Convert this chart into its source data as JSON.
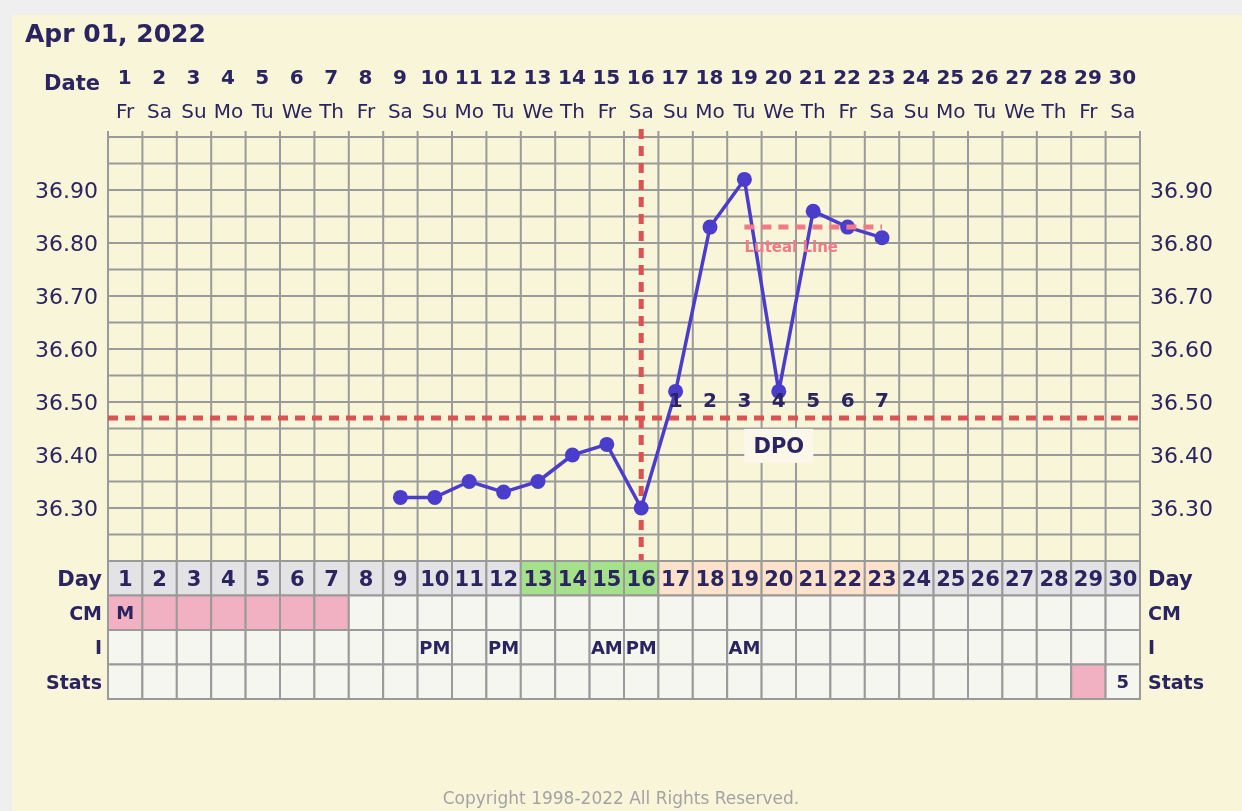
{
  "chart_data": [
    {
      "type": "line",
      "title": "Apr 01, 2022",
      "xlabel": "Date",
      "categories": [
        "1 Fr",
        "2 Sa",
        "3 Su",
        "4 Mo",
        "5 Tu",
        "6 We",
        "7 Th",
        "8 Fr",
        "9 Sa",
        "10 Su",
        "11 Mo",
        "12 Tu",
        "13 We",
        "14 Th",
        "15 Fr",
        "16 Sa",
        "17 Su",
        "18 Mo",
        "19 Tu",
        "20 We",
        "21 Th",
        "22 Fr",
        "23 Sa",
        "24 Su",
        "25 Mo",
        "26 Tu",
        "27 We",
        "28 Th",
        "29 Fr",
        "30 Sa"
      ],
      "series": [
        {
          "color": "#4b3dcc",
          "marker": "circle",
          "values": [
            null,
            null,
            null,
            null,
            null,
            null,
            null,
            null,
            36.32,
            36.32,
            36.35,
            36.33,
            36.35,
            36.4,
            36.42,
            36.3,
            36.52,
            36.83,
            36.92,
            36.52,
            36.86,
            36.83,
            36.81,
            null,
            null,
            null,
            null,
            null,
            null,
            null
          ]
        },
        {
          "name": "Luteal Line",
          "color": "#f27a86",
          "marker": "none",
          "line_style": "dashed",
          "values": [
            null,
            null,
            null,
            null,
            null,
            null,
            null,
            null,
            null,
            null,
            null,
            null,
            null,
            null,
            null,
            null,
            null,
            null,
            36.83,
            36.83,
            36.83,
            36.83,
            36.83,
            null,
            null,
            null,
            null,
            null,
            null,
            null
          ]
        }
      ],
      "ylim": [
        36.2,
        37.0
      ],
      "yticks": [
        {
          "value": 36.25,
          "label": null
        },
        {
          "value": 36.3,
          "label": "36.30"
        },
        {
          "value": 36.35,
          "label": null
        },
        {
          "value": 36.4,
          "label": "36.40"
        },
        {
          "value": 36.45,
          "label": null
        },
        {
          "value": 36.5,
          "label": "36.50"
        },
        {
          "value": 36.55,
          "label": null
        },
        {
          "value": 36.6,
          "label": "36.60"
        },
        {
          "value": 36.65,
          "label": null
        },
        {
          "value": 36.7,
          "label": "36.70"
        },
        {
          "value": 36.75,
          "label": null
        },
        {
          "value": 36.8,
          "label": "36.80"
        },
        {
          "value": 36.85,
          "label": null
        },
        {
          "value": 36.9,
          "label": "36.90"
        },
        {
          "value": 36.95,
          "label": null
        }
      ],
      "y2lim": [
        36.2,
        37.0
      ],
      "y2ticks": [
        {
          "value": 36.3,
          "label": "36.30"
        },
        {
          "value": 36.4,
          "label": "36.40"
        },
        {
          "value": 36.5,
          "label": "36.50"
        },
        {
          "value": 36.6,
          "label": "36.60"
        },
        {
          "value": 36.7,
          "label": "36.70"
        },
        {
          "value": 36.8,
          "label": "36.80"
        },
        {
          "value": 36.9,
          "label": "36.90"
        }
      ],
      "grid": true,
      "ref_lines": [
        {
          "axis": "x",
          "value": "16 Sa",
          "color": "#dc5252",
          "line_style": "dashed"
        },
        {
          "axis": "y",
          "value": 36.47,
          "color": "#dc5252",
          "line_style": "dashed"
        }
      ],
      "annotations": [
        "1",
        "2",
        "3",
        "4",
        "5",
        "6",
        "7",
        "DPO",
        "Copyright 1998-2022 All Rights Reserved."
      ]
    },
    {
      "type": "heatmap",
      "categories": [
        null,
        null,
        null,
        null,
        null,
        null,
        null,
        null,
        null,
        null,
        null,
        null,
        null,
        null,
        null,
        null,
        null,
        null,
        null,
        null,
        null,
        null,
        null,
        null,
        null,
        null,
        null,
        null,
        null,
        null
      ],
      "y_categories": [
        "Day"
      ],
      "y2_categories": [
        "Day"
      ],
      "cells": [
        [
          1,
          2,
          3,
          4,
          5,
          6,
          7,
          8,
          9,
          10,
          11,
          12,
          13,
          14,
          15,
          16,
          17,
          18,
          19,
          20,
          21,
          22,
          23,
          24,
          25,
          26,
          27,
          28,
          29,
          30
        ]
      ],
      "data_labels": true,
      "colors": [
        [
          "#e3e3e6",
          "#e3e3e6",
          "#e3e3e6",
          "#e3e3e6",
          "#e3e3e6",
          "#e3e3e6",
          "#e3e3e6",
          "#e3e3e6",
          "#e3e3e6",
          "#e3e3e6",
          "#e3e3e6",
          "#e3e3e6",
          "#a5e08b",
          "#a5e08b",
          "#a5e08b",
          "#a5e08b",
          "#fde2cb",
          "#fde2cb",
          "#fde2cb",
          "#fde2cb",
          "#fde2cb",
          "#fde2cb",
          "#fde2cb",
          "#e3e3e6",
          "#e3e3e6",
          "#e3e3e6",
          "#e3e3e6",
          "#e3e3e6",
          "#e3e3e6",
          "#e3e3e6"
        ]
      ]
    },
    {
      "type": "other",
      "y_categories": [
        "CM",
        "I",
        "Stats"
      ],
      "y2_categories": [
        "CM",
        "I",
        "Stats"
      ],
      "cell_labels": [
        [
          "M",
          null,
          null,
          null,
          null,
          null,
          null,
          null,
          null,
          null,
          null,
          null,
          null,
          null,
          null,
          null,
          null,
          null,
          null,
          null,
          null,
          null,
          null,
          null,
          null,
          null,
          null,
          null,
          null,
          null
        ],
        [
          null,
          null,
          null,
          null,
          null,
          null,
          null,
          null,
          null,
          "PM",
          null,
          "PM",
          null,
          null,
          "AM",
          "PM",
          null,
          null,
          "AM",
          null,
          null,
          null,
          null,
          null,
          null,
          null,
          null,
          null,
          null,
          null
        ],
        [
          null,
          null,
          null,
          null,
          null,
          null,
          null,
          null,
          null,
          null,
          null,
          null,
          null,
          null,
          null,
          null,
          null,
          null,
          null,
          null,
          null,
          null,
          null,
          null,
          null,
          null,
          null,
          null,
          null,
          "5"
        ]
      ],
      "colors": [
        [
          "#f2b1c3",
          "#f2b1c3",
          "#f2b1c3",
          "#f2b1c3",
          "#f2b1c3",
          "#f2b1c3",
          "#f2b1c3",
          null,
          null,
          null,
          null,
          null,
          null,
          null,
          null,
          null,
          null,
          null,
          null,
          null,
          null,
          null,
          null,
          null,
          null,
          null,
          null,
          null,
          null,
          null
        ],
        [
          null,
          null,
          null,
          null,
          null,
          null,
          null,
          null,
          null,
          null,
          null,
          null,
          null,
          null,
          null,
          null,
          null,
          null,
          null,
          null,
          null,
          null,
          null,
          null,
          null,
          null,
          null,
          null,
          null,
          null
        ],
        [
          null,
          null,
          null,
          null,
          null,
          null,
          null,
          null,
          null,
          null,
          null,
          null,
          null,
          null,
          null,
          null,
          null,
          null,
          null,
          null,
          null,
          null,
          null,
          null,
          null,
          null,
          null,
          null,
          "#f2b1c3",
          null
        ]
      ]
    }
  ]
}
